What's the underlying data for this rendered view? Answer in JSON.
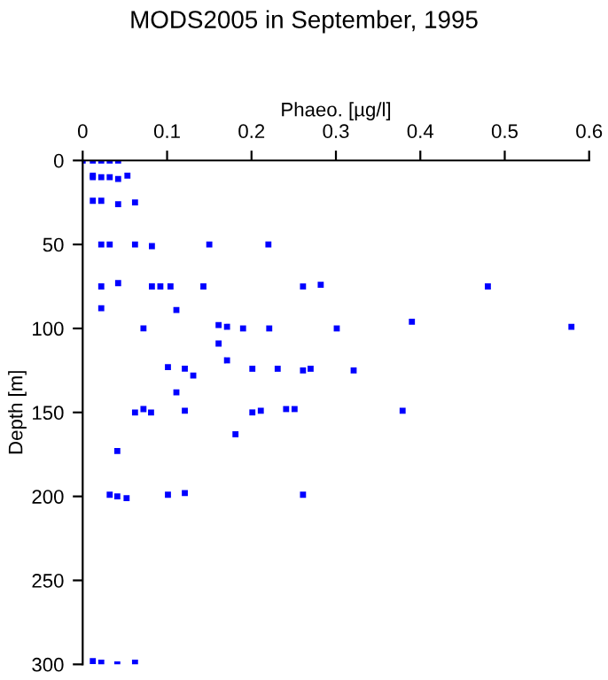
{
  "chart_data": {
    "type": "scatter",
    "title": "MODS2005 in September, 1995",
    "xlabel": "Phaeo. [µg/l]",
    "ylabel": "Depth [m]",
    "xlim": [
      0,
      0.6
    ],
    "xticks": [
      0,
      0.1,
      0.2,
      0.3,
      0.4,
      0.5,
      0.6
    ],
    "ylim": [
      300,
      0
    ],
    "yticks": [
      0,
      50,
      100,
      150,
      200,
      250,
      300
    ],
    "grid": false,
    "marker": "square",
    "series": [
      {
        "color": "#0000ff",
        "x": [
          0,
          0.012,
          0.022,
          0.032,
          0.042,
          0.012,
          0.012,
          0.022,
          0.032,
          0.042,
          0.053,
          0.012,
          0.022,
          0.042,
          0.062,
          0.022,
          0.032,
          0.062,
          0.082,
          0.15,
          0.22,
          0.022,
          0.042,
          0.082,
          0.092,
          0.104,
          0.143,
          0.261,
          0.282,
          0.48,
          0.022,
          0.111,
          0.072,
          0.161,
          0.171,
          0.19,
          0.221,
          0.301,
          0.39,
          0.579,
          0.161,
          0.171,
          0.101,
          0.121,
          0.131,
          0.201,
          0.231,
          0.261,
          0.27,
          0.321,
          0.111,
          0.062,
          0.072,
          0.081,
          0.121,
          0.201,
          0.211,
          0.241,
          0.251,
          0.379,
          0.181,
          0.041,
          0.032,
          0.041,
          0.052,
          0.101,
          0.121,
          0.261,
          0.012,
          0.022,
          0.041,
          0.062
        ],
        "values": [
          0,
          0,
          0,
          0,
          0,
          9,
          10,
          10,
          10,
          11,
          9,
          24,
          24,
          26,
          25,
          50,
          50,
          50,
          51,
          50,
          50,
          75,
          73,
          75,
          75,
          75,
          75,
          75,
          74,
          75,
          88,
          89,
          100,
          98,
          99,
          100,
          100,
          100,
          96,
          99,
          109,
          119,
          123,
          124,
          128,
          124,
          124,
          125,
          124,
          125,
          138,
          150,
          148,
          150,
          149,
          150,
          149,
          148,
          148,
          149,
          163,
          173,
          199,
          200,
          201,
          199,
          198,
          199,
          298,
          299,
          300,
          299
        ]
      }
    ]
  }
}
